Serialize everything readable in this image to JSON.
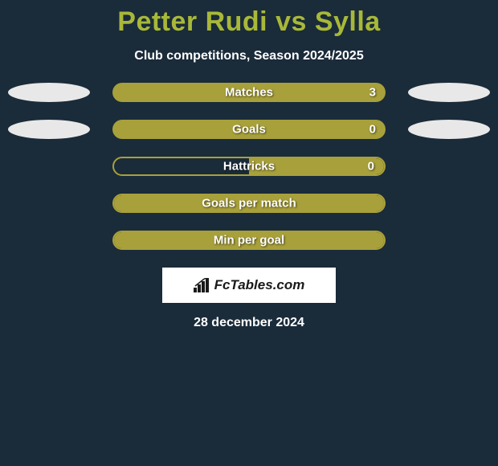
{
  "title": "Petter Rudi vs Sylla",
  "subtitle": "Club competitions, Season 2024/2025",
  "date": "28 december 2024",
  "attribution": "FcTables.com",
  "colors": {
    "background": "#1a2b3a",
    "accent": "#a8b838",
    "bar_fill": "#a8a03a",
    "ellipse": "#e8e8e8",
    "text": "#ffffff"
  },
  "rows": [
    {
      "label": "Matches",
      "left_value": "",
      "right_value": "3",
      "left_ellipse": true,
      "right_ellipse": true,
      "fill_style": "full",
      "outlined": false
    },
    {
      "label": "Goals",
      "left_value": "",
      "right_value": "0",
      "left_ellipse": true,
      "right_ellipse": true,
      "fill_style": "full",
      "outlined": false
    },
    {
      "label": "Hattricks",
      "left_value": "",
      "right_value": "0",
      "left_ellipse": false,
      "right_ellipse": false,
      "fill_style": "right-half",
      "outlined": true
    },
    {
      "label": "Goals per match",
      "left_value": "",
      "right_value": "",
      "left_ellipse": false,
      "right_ellipse": false,
      "fill_style": "full",
      "outlined": true
    },
    {
      "label": "Min per goal",
      "left_value": "",
      "right_value": "",
      "left_ellipse": false,
      "right_ellipse": false,
      "fill_style": "full",
      "outlined": true
    }
  ]
}
